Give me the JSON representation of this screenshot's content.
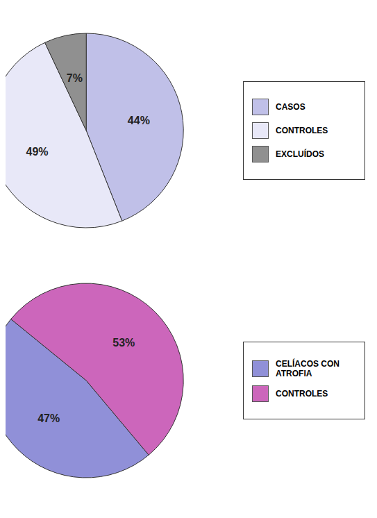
{
  "chart_data": [
    {
      "type": "pie",
      "categories": [
        "CASOS",
        "CONTROLES",
        "EXCLUÍDOS"
      ],
      "values": [
        44,
        49,
        7
      ],
      "value_labels": [
        "44%",
        "49%",
        "7%"
      ],
      "colors": [
        "#c0c0e8",
        "#e8e8f8",
        "#909090"
      ],
      "data_labels": true,
      "legend": "right"
    },
    {
      "type": "pie",
      "categories": [
        "CELÍACOS CON\nATROFIA",
        "CONTROLES"
      ],
      "values": [
        47,
        53
      ],
      "value_labels": [
        "47%",
        "53%"
      ],
      "colors": [
        "#9090d8",
        "#cc66bb"
      ],
      "data_labels": true,
      "legend": "right"
    }
  ]
}
